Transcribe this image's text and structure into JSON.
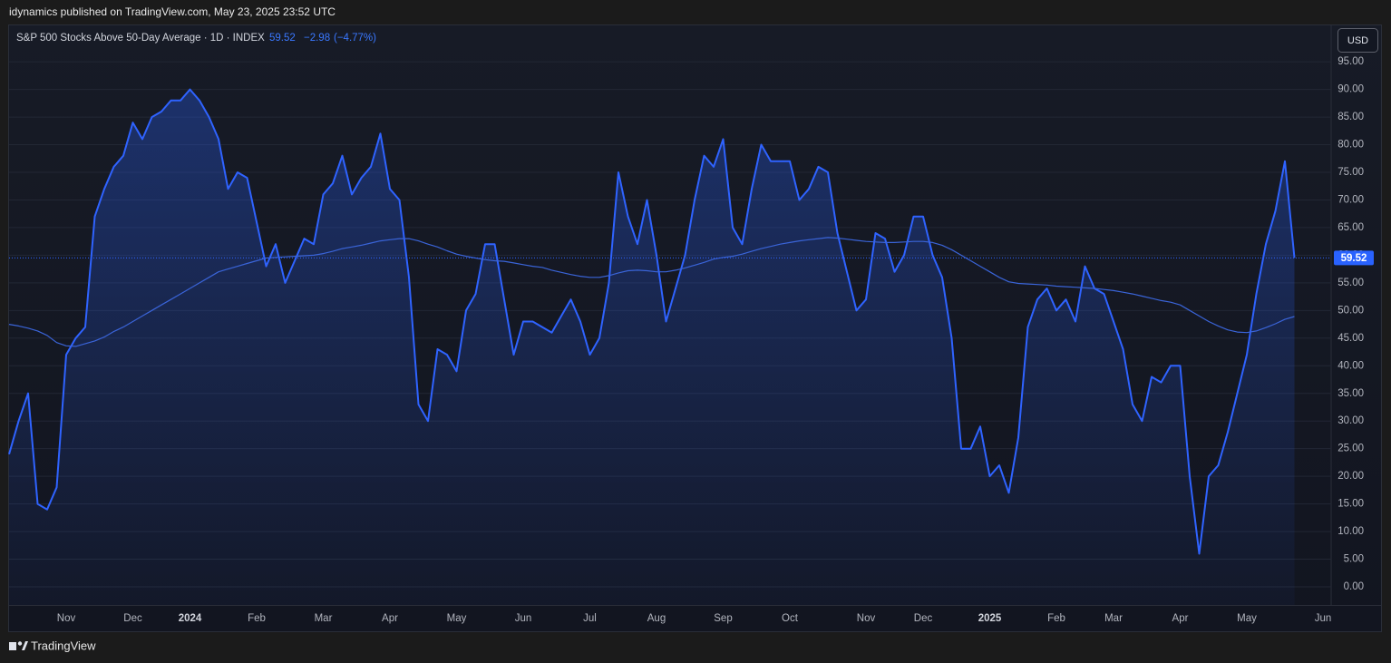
{
  "header": {
    "published": "idynamics published on TradingView.com, May 23, 2025 23:52 UTC"
  },
  "footer": {
    "brand": "TradingView"
  },
  "chart_data": {
    "type": "line",
    "title": "S&P 500 Stocks Above 50-Day Average · 1D · INDEX",
    "change": "−2.98",
    "change_pct": "(−4.77%)",
    "currency": "USD",
    "categories": [
      null,
      null,
      null,
      null,
      null,
      null,
      "Nov",
      null,
      null,
      null,
      null,
      null,
      null,
      "Dec",
      null,
      null,
      null,
      null,
      null,
      "2024",
      null,
      null,
      null,
      null,
      null,
      null,
      "Feb",
      null,
      null,
      null,
      null,
      null,
      null,
      "Mar",
      null,
      null,
      null,
      null,
      null,
      null,
      "Apr",
      null,
      null,
      null,
      null,
      null,
      null,
      "May",
      null,
      null,
      null,
      null,
      null,
      null,
      "Jun",
      null,
      null,
      null,
      null,
      null,
      null,
      "Jul",
      null,
      null,
      null,
      null,
      null,
      null,
      "Aug",
      null,
      null,
      null,
      null,
      null,
      null,
      "Sep",
      null,
      null,
      null,
      null,
      null,
      null,
      "Oct",
      null,
      null,
      null,
      null,
      null,
      null,
      null,
      "Nov",
      null,
      null,
      null,
      null,
      null,
      "Dec",
      null,
      null,
      null,
      null,
      null,
      null,
      "2025",
      null,
      null,
      null,
      null,
      null,
      null,
      "Feb",
      null,
      null,
      null,
      null,
      null,
      "Mar",
      null,
      null,
      null,
      null,
      null,
      null,
      "Apr",
      null,
      null,
      null,
      null,
      null,
      null,
      "May",
      null,
      null,
      null,
      null,
      null,
      null,
      null,
      "Jun"
    ],
    "series": [
      {
        "color": "#2f63ff",
        "values": [
          24,
          30,
          35,
          15,
          14,
          18,
          42,
          45,
          47,
          67,
          72,
          76,
          78,
          84,
          81,
          85,
          86,
          88,
          88,
          90,
          88,
          85,
          81,
          72,
          75,
          74,
          66,
          58,
          62,
          55,
          59,
          63,
          62,
          71,
          73,
          78,
          71,
          74,
          76,
          82,
          72,
          70,
          56,
          33,
          30,
          43,
          42,
          39,
          50,
          53,
          62,
          62,
          52,
          42,
          48,
          48,
          47,
          46,
          49,
          52,
          48,
          42,
          45,
          55,
          75,
          67,
          62,
          70,
          60,
          48,
          54,
          60,
          70,
          78,
          76,
          81,
          65,
          62,
          72,
          80,
          77,
          77,
          77,
          70,
          72,
          76,
          75,
          64,
          57,
          50,
          52,
          64,
          63,
          57,
          60,
          67,
          67,
          60,
          56,
          45,
          25,
          25,
          29,
          20,
          22,
          17,
          27,
          47,
          52,
          54,
          50,
          52,
          48,
          58,
          54,
          53,
          48,
          43,
          33,
          30,
          38,
          37,
          40,
          40,
          20,
          6,
          20,
          22,
          28,
          35,
          42,
          53,
          62,
          68,
          77,
          59.52,
          null,
          null,
          null
        ]
      },
      {
        "color": "#3a64d8",
        "values": [
          47.5,
          47.2,
          46.8,
          46.3,
          45.5,
          44.2,
          43.6,
          43.5,
          44,
          44.5,
          45.2,
          46.2,
          47,
          48,
          49,
          50,
          51,
          52,
          53,
          54,
          55,
          56,
          57,
          57.5,
          58,
          58.5,
          59,
          59.5,
          59.6,
          59.7,
          59.8,
          59.9,
          60,
          60.3,
          60.7,
          61.2,
          61.5,
          61.8,
          62.2,
          62.6,
          62.8,
          63,
          63,
          62.6,
          62,
          61.5,
          60.8,
          60.2,
          59.8,
          59.5,
          59.2,
          59,
          58.9,
          58.6,
          58.3,
          58,
          57.8,
          57.3,
          56.9,
          56.5,
          56.2,
          56,
          56,
          56.3,
          56.8,
          57.2,
          57.3,
          57.2,
          57,
          57,
          57.3,
          57.7,
          58.2,
          58.7,
          59.3,
          59.6,
          59.8,
          60.2,
          60.7,
          61.2,
          61.6,
          62,
          62.3,
          62.6,
          62.8,
          63,
          63.2,
          63.1,
          62.9,
          62.7,
          62.5,
          62.4,
          62.3,
          62.3,
          62.4,
          62.5,
          62.5,
          62.3,
          61.8,
          61,
          60,
          59,
          58,
          57,
          56,
          55.2,
          54.9,
          54.8,
          54.7,
          54.6,
          54.4,
          54.3,
          54.2,
          54.1,
          54,
          53.8,
          53.6,
          53.3,
          53,
          52.6,
          52.2,
          51.8,
          51.5,
          51,
          50,
          49,
          48,
          47.2,
          46.5,
          46.1,
          46,
          46.3,
          46.9,
          47.6,
          48.4,
          48.9,
          null,
          null,
          null
        ]
      }
    ],
    "ylim": [
      -3.28,
      101.75
    ],
    "yticks": [
      {
        "value": 0,
        "label": "0.00"
      },
      {
        "value": 5,
        "label": "5.00"
      },
      {
        "value": 10,
        "label": "10.00"
      },
      {
        "value": 15,
        "label": "15.00"
      },
      {
        "value": 20,
        "label": "20.00"
      },
      {
        "value": 25,
        "label": "25.00"
      },
      {
        "value": 30,
        "label": "30.00"
      },
      {
        "value": 35,
        "label": "35.00"
      },
      {
        "value": 40,
        "label": "40.00"
      },
      {
        "value": 45,
        "label": "45.00"
      },
      {
        "value": 50,
        "label": "50.00"
      },
      {
        "value": 55,
        "label": "55.00"
      },
      {
        "value": 60,
        "label": "60.00"
      },
      {
        "value": 65,
        "label": "65.00"
      },
      {
        "value": 70,
        "label": "70.00"
      },
      {
        "value": 75,
        "label": "75.00"
      },
      {
        "value": 80,
        "label": "80.00"
      },
      {
        "value": 85,
        "label": "85.00"
      },
      {
        "value": 90,
        "label": "90.00"
      },
      {
        "value": 95,
        "label": "95.00"
      }
    ],
    "grid": true
  }
}
